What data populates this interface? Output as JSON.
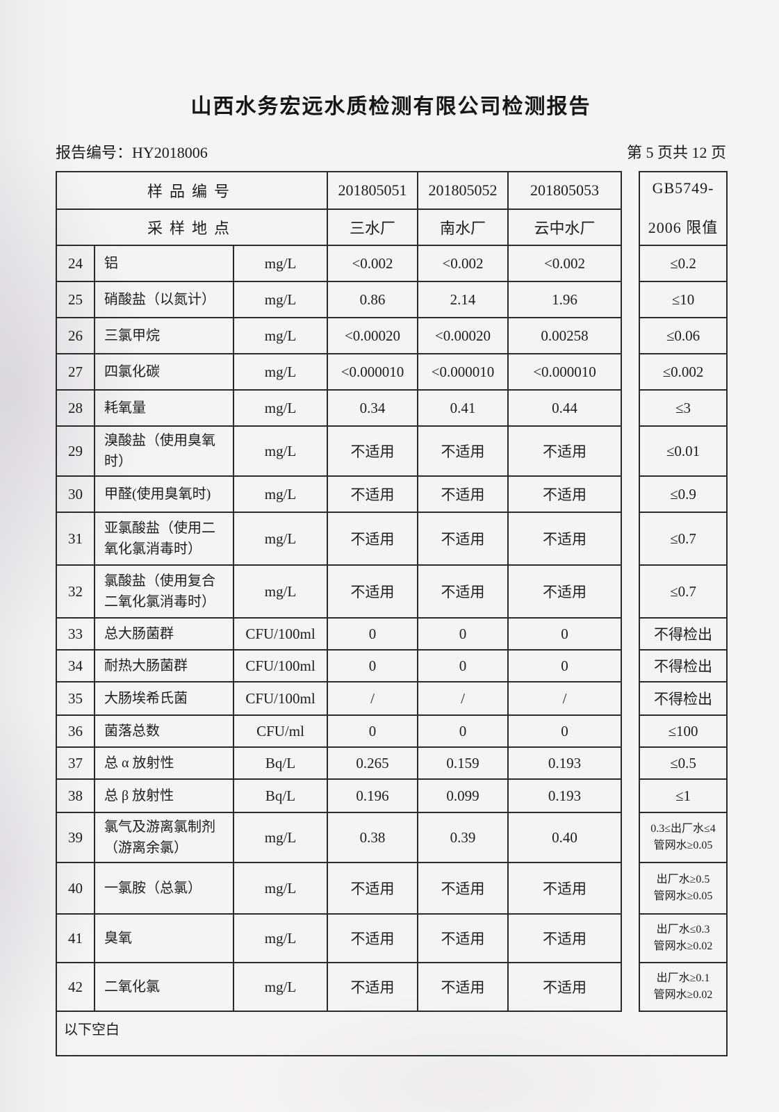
{
  "title": "山西水务宏远水质检测有限公司检测报告",
  "report_number": "报告编号：HY2018006",
  "page_indicator": "第 5 页共 12 页",
  "table": {
    "sample_id_label": "样品编号",
    "location_label": "采样地点",
    "samples": [
      {
        "id": "201805051",
        "location": "三水厂"
      },
      {
        "id": "201805052",
        "location": "南水厂"
      },
      {
        "id": "201805053",
        "location": "云中水厂"
      }
    ],
    "limit_header_line1": "GB5749-",
    "limit_header_line2": "2006 限值",
    "rows": [
      {
        "no": "24",
        "name": "铝",
        "unit": "mg/L",
        "values": [
          "<0.002",
          "<0.002",
          "<0.002"
        ],
        "limit": [
          "≤0.2"
        ]
      },
      {
        "no": "25",
        "name": "硝酸盐（以氮计）",
        "unit": "mg/L",
        "values": [
          "0.86",
          "2.14",
          "1.96"
        ],
        "limit": [
          "≤10"
        ]
      },
      {
        "no": "26",
        "name": "三氯甲烷",
        "unit": "mg/L",
        "values": [
          "<0.00020",
          "<0.00020",
          "0.00258"
        ],
        "limit": [
          "≤0.06"
        ]
      },
      {
        "no": "27",
        "name": "四氯化碳",
        "unit": "mg/L",
        "values": [
          "<0.000010",
          "<0.000010",
          "<0.000010"
        ],
        "limit": [
          "≤0.002"
        ]
      },
      {
        "no": "28",
        "name": "耗氧量",
        "unit": "mg/L",
        "values": [
          "0.34",
          "0.41",
          "0.44"
        ],
        "limit": [
          "≤3"
        ]
      },
      {
        "no": "29",
        "name": "溴酸盐（使用臭氧时）",
        "unit": "mg/L",
        "values": [
          "不适用",
          "不适用",
          "不适用"
        ],
        "limit": [
          "≤0.01"
        ]
      },
      {
        "no": "30",
        "name": "甲醛(使用臭氧时)",
        "unit": "mg/L",
        "values": [
          "不适用",
          "不适用",
          "不适用"
        ],
        "limit": [
          "≤0.9"
        ]
      },
      {
        "no": "31",
        "name": "亚氯酸盐（使用二氧化氯消毒时）",
        "unit": "mg/L",
        "values": [
          "不适用",
          "不适用",
          "不适用"
        ],
        "limit": [
          "≤0.7"
        ]
      },
      {
        "no": "32",
        "name": "氯酸盐（使用复合二氧化氯消毒时）",
        "unit": "mg/L",
        "values": [
          "不适用",
          "不适用",
          "不适用"
        ],
        "limit": [
          "≤0.7"
        ]
      },
      {
        "no": "33",
        "name": "总大肠菌群",
        "unit": "CFU/100ml",
        "values": [
          "0",
          "0",
          "0"
        ],
        "limit": [
          "不得检出"
        ]
      },
      {
        "no": "34",
        "name": "耐热大肠菌群",
        "unit": "CFU/100ml",
        "values": [
          "0",
          "0",
          "0"
        ],
        "limit": [
          "不得检出"
        ]
      },
      {
        "no": "35",
        "name": "大肠埃希氏菌",
        "unit": "CFU/100ml",
        "values": [
          "/",
          "/",
          "/"
        ],
        "limit": [
          "不得检出"
        ]
      },
      {
        "no": "36",
        "name": "菌落总数",
        "unit": "CFU/ml",
        "values": [
          "0",
          "0",
          "0"
        ],
        "limit": [
          "≤100"
        ]
      },
      {
        "no": "37",
        "name": "总 α 放射性",
        "unit": "Bq/L",
        "values": [
          "0.265",
          "0.159",
          "0.193"
        ],
        "limit": [
          "≤0.5"
        ]
      },
      {
        "no": "38",
        "name": "总 β 放射性",
        "unit": "Bq/L",
        "values": [
          "0.196",
          "0.099",
          "0.193"
        ],
        "limit": [
          "≤1"
        ]
      },
      {
        "no": "39",
        "name": "氯气及游离氯制剂（游离余氯）",
        "unit": "mg/L",
        "values": [
          "0.38",
          "0.39",
          "0.40"
        ],
        "limit": [
          "0.3≤出厂水≤4",
          "管网水≥0.05"
        ]
      },
      {
        "no": "40",
        "name": "一氯胺（总氯）",
        "unit": "mg/L",
        "values": [
          "不适用",
          "不适用",
          "不适用"
        ],
        "limit": [
          "出厂水≥0.5",
          "管网水≥0.05"
        ]
      },
      {
        "no": "41",
        "name": "臭氧",
        "unit": "mg/L",
        "values": [
          "不适用",
          "不适用",
          "不适用"
        ],
        "limit": [
          "出厂水≤0.3",
          "管网水≥0.02"
        ]
      },
      {
        "no": "42",
        "name": "二氧化氯",
        "unit": "mg/L",
        "values": [
          "不适用",
          "不适用",
          "不适用"
        ],
        "limit": [
          "出厂水≥0.1",
          "管网水≥0.02"
        ]
      }
    ],
    "footer_note": "以下空白"
  }
}
